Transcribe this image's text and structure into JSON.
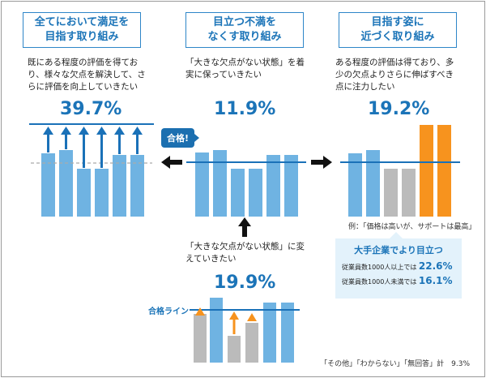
{
  "colors": {
    "blue_bar": "#6fb3e2",
    "gray_bar": "#bbbbbb",
    "orange_bar": "#f7931e",
    "line": "#1a71b8",
    "accent": "#1b74b8"
  },
  "left": {
    "header": "全てにおいて満足を\n目指す取り組み",
    "desc": "既にある程度の評価を得てお\nり、様々な欠点を解決して、さ\nらに評価を向上していきたい",
    "pct": "39.7%"
  },
  "center": {
    "header": "目立つ不満を\nなくす取り組み",
    "desc": "「大きな欠点がない状態」を着\n実に保っていきたい",
    "pct": "11.9%",
    "badge": "合格!"
  },
  "right": {
    "header": "目指す姿に\n近づく取り組み",
    "desc": "ある程度の評価は得ており、多\n少の欠点よりさらに伸ばすべき\n点に注力したい",
    "pct": "19.2%",
    "example": "例：「価格は高いが、サポートは最高」"
  },
  "bottom": {
    "desc": "「大きな欠点がない状態」に変\nえていきたい",
    "pct": "19.9%",
    "line_label": "合格ライン"
  },
  "panel": {
    "title": "大手企業でより目立つ",
    "row1_label": "従業員数1000人以上では",
    "row1_value": "22.6%",
    "row2_label": "従業員数1000人未満では",
    "row2_value": "16.1%"
  },
  "footer": "「その他」「わからない」「無回答」計　9.3%"
}
